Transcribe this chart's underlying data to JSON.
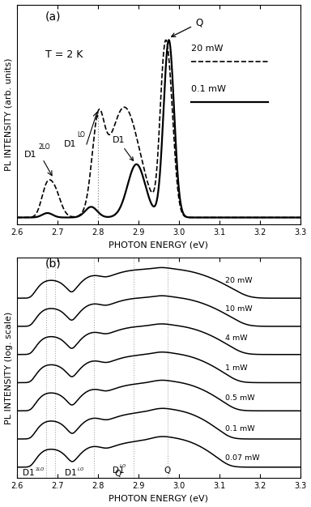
{
  "title_a": "(a)",
  "title_b": "(b)",
  "xlabel": "PHOTON ENERGY (eV)",
  "ylabel_a": "PL INTENSITY (arb. units)",
  "ylabel_b": "PL INTENSITY (log. scale)",
  "xlim": [
    2.6,
    3.3
  ],
  "xticks": [
    2.6,
    2.7,
    2.8,
    2.9,
    3.0,
    3.1,
    3.2,
    3.3
  ],
  "temp_label": "T = 2 K",
  "legend_high": "20 mW",
  "legend_low": "0.1 mW",
  "powers_b": [
    "20 mW",
    "10 mW",
    "4 mW",
    "1 mW",
    "0.5 mW",
    "0.1 mW",
    "0.07 mW"
  ],
  "line_color": "#000000",
  "dotted_color": "#888888"
}
